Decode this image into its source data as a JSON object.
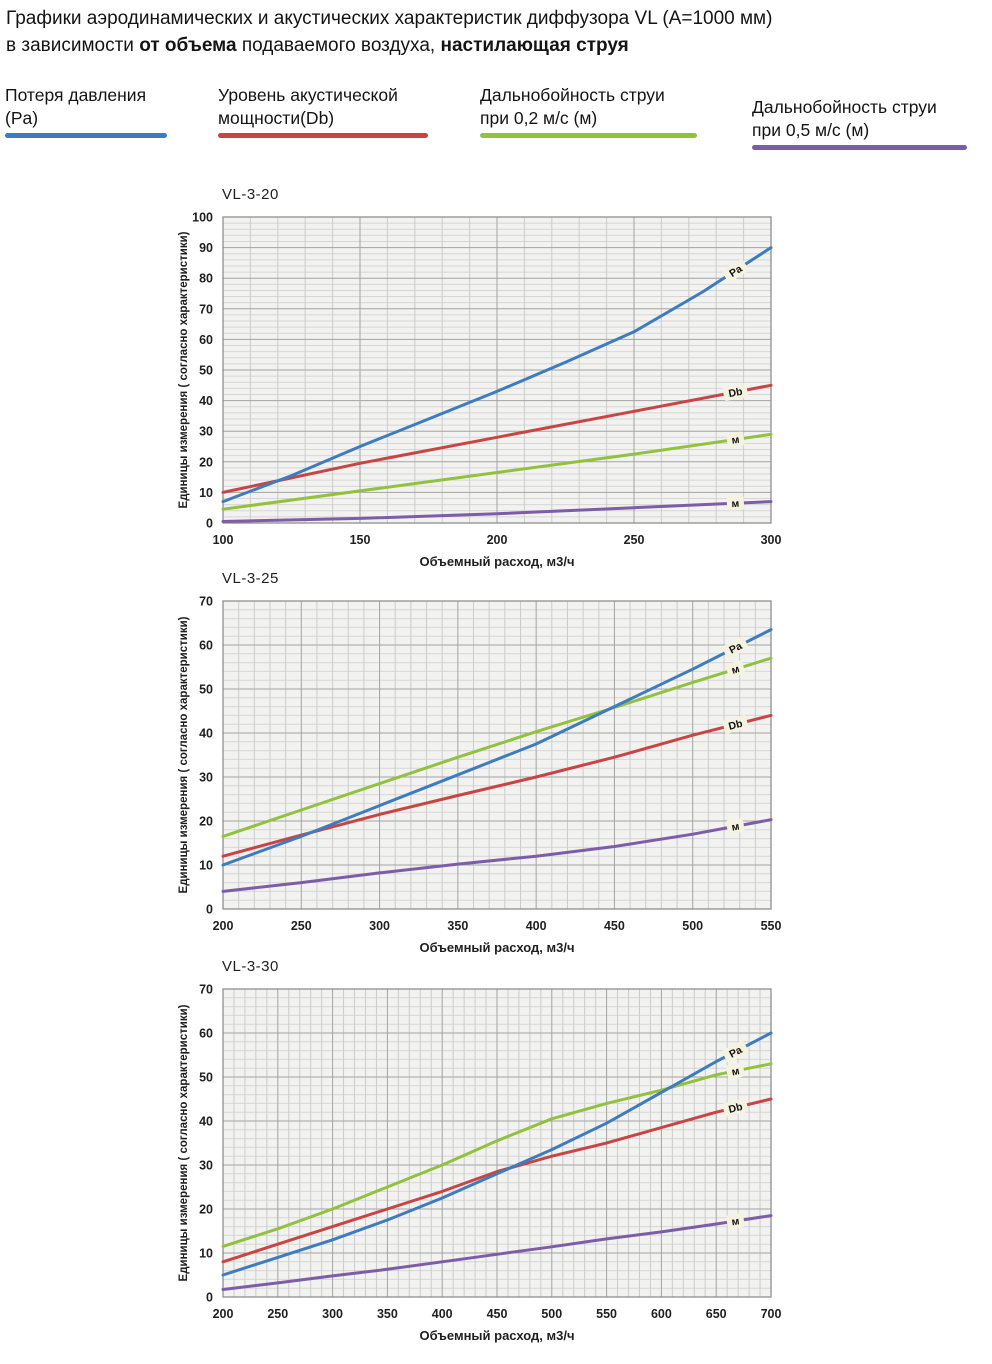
{
  "header": {
    "line1": "Графики аэродинамических и акустических характеристик  диффузора VL (А=1000 мм)",
    "line2": {
      "prefix": "в зависимости ",
      "bold1": "от объема",
      "mid": " подаваемого воздуха, ",
      "bold2": "настилающая струя"
    }
  },
  "legend": [
    {
      "line1": "Потеря давления",
      "line2": "(Pa)",
      "color": "#3e7cbe"
    },
    {
      "line1": "Уровень акустической",
      "line2": "мощности(Db)",
      "color": "#c74545"
    },
    {
      "line1": "Дальнобойность струи",
      "line2": "при 0,2 м/с (м)",
      "color": "#92c13e"
    },
    {
      "line1": "Дальнобойность струи",
      "line2": "при 0,5 м/с (м)",
      "color": "#7d5ca8"
    }
  ],
  "chart_data": [
    {
      "type": "line",
      "title": "VL-3-20",
      "xlabel": "Объемный расход, м3/ч",
      "ylabel": "Единицы измерения ( согласно характеристики)",
      "xlim": [
        100,
        300
      ],
      "ylim": [
        0,
        100
      ],
      "x_ticks": [
        100,
        150,
        200,
        250,
        300
      ],
      "y_ticks": [
        0,
        10,
        20,
        30,
        40,
        50,
        60,
        70,
        80,
        90,
        100
      ],
      "x_minor_step": 10,
      "y_minor_step": 2,
      "grid": true,
      "series": [
        {
          "name": "Дальнобойность струи при 0,2 м/с (м)",
          "label": "м",
          "color": "#92c13e",
          "x": [
            100,
            150,
            200,
            250,
            300
          ],
          "values": [
            4.5,
            10.5,
            16.5,
            22.5,
            29
          ]
        },
        {
          "name": "Дальнобойность струи при 0,5 м/с (м)",
          "label": "м",
          "color": "#7d5ca8",
          "x": [
            100,
            150,
            200,
            250,
            300
          ],
          "values": [
            0.5,
            1.5,
            3,
            5,
            7
          ]
        },
        {
          "name": "Уровень акустической мощности(Db)",
          "label": "Db",
          "color": "#c74545",
          "x": [
            100,
            150,
            200,
            250,
            300
          ],
          "values": [
            10,
            19.5,
            28,
            36.5,
            45
          ]
        },
        {
          "name": "Потеря давления (Pa)",
          "label": "Pa",
          "color": "#3e7cbe",
          "x": [
            100,
            125,
            150,
            175,
            200,
            225,
            250,
            275,
            300
          ],
          "values": [
            7,
            15.5,
            25,
            34,
            43,
            52.5,
            62.5,
            75.5,
            90
          ]
        }
      ]
    },
    {
      "type": "line",
      "title": "VL-3-25",
      "xlabel": "Объемный расход, м3/ч",
      "ylabel": "Единицы измерения ( согласно характеристики)",
      "xlim": [
        200,
        550
      ],
      "ylim": [
        0,
        70
      ],
      "x_ticks": [
        200,
        250,
        300,
        350,
        400,
        450,
        500,
        550
      ],
      "y_ticks": [
        0,
        10,
        20,
        30,
        40,
        50,
        60,
        70
      ],
      "x_minor_step": 10,
      "y_minor_step": 2,
      "grid": true,
      "series": [
        {
          "name": "Дальнобойность струи при 0,2 м/с (м)",
          "label": "м",
          "color": "#92c13e",
          "x": [
            200,
            250,
            300,
            350,
            400,
            450,
            500,
            550
          ],
          "values": [
            16.5,
            22.5,
            28.5,
            34.5,
            40.3,
            45.8,
            51.5,
            57
          ]
        },
        {
          "name": "Дальнобойность струи при 0,5 м/с (м)",
          "label": "м",
          "color": "#7d5ca8",
          "x": [
            200,
            250,
            300,
            350,
            400,
            450,
            500,
            550
          ],
          "values": [
            4,
            6,
            8.2,
            10.2,
            12,
            14.2,
            17,
            20.3
          ]
        },
        {
          "name": "Уровень акустической мощности(Db)",
          "label": "Db",
          "color": "#c74545",
          "x": [
            200,
            250,
            300,
            350,
            400,
            450,
            500,
            550
          ],
          "values": [
            12,
            16.8,
            21.5,
            25.8,
            30,
            34.5,
            39.5,
            44
          ]
        },
        {
          "name": "Потеря давления (Pa)",
          "label": "Pa",
          "color": "#3e7cbe",
          "x": [
            200,
            250,
            300,
            350,
            400,
            450,
            500,
            550
          ],
          "values": [
            10,
            16.5,
            23.5,
            30.5,
            37.5,
            46,
            54.5,
            63.5
          ]
        }
      ]
    },
    {
      "type": "line",
      "title": "VL-3-30",
      "xlabel": "Объемный расход, м3/ч",
      "ylabel": "Единицы измерения ( согласно характеристики)",
      "xlim": [
        200,
        700
      ],
      "ylim": [
        0,
        70
      ],
      "x_ticks": [
        200,
        250,
        300,
        350,
        400,
        450,
        500,
        550,
        600,
        650,
        700
      ],
      "y_ticks": [
        0,
        10,
        20,
        30,
        40,
        50,
        60,
        70
      ],
      "x_minor_step": 10,
      "y_minor_step": 2,
      "grid": true,
      "series": [
        {
          "name": "Дальнобойность струи при 0,2 м/с (м)",
          "label": "м",
          "color": "#92c13e",
          "x": [
            200,
            250,
            300,
            350,
            400,
            450,
            500,
            550,
            600,
            650,
            700
          ],
          "values": [
            11.5,
            15.5,
            20,
            25,
            30,
            35.5,
            40.5,
            44,
            47,
            50.5,
            53
          ]
        },
        {
          "name": "Дальнобойность струи при 0,5 м/с (м)",
          "label": "м",
          "color": "#7d5ca8",
          "x": [
            200,
            250,
            300,
            350,
            400,
            450,
            500,
            550,
            600,
            650,
            700
          ],
          "values": [
            1.7,
            3.2,
            4.8,
            6.3,
            8,
            9.7,
            11.4,
            13.2,
            14.8,
            16.6,
            18.5
          ]
        },
        {
          "name": "Уровень акустической мощности(Db)",
          "label": "Db",
          "color": "#c74545",
          "x": [
            200,
            250,
            300,
            350,
            400,
            450,
            500,
            550,
            600,
            650,
            700
          ],
          "values": [
            8,
            12,
            16,
            20,
            24,
            28.5,
            32,
            35,
            38.5,
            42,
            45
          ]
        },
        {
          "name": "Потеря давления (Pa)",
          "label": "Pa",
          "color": "#3e7cbe",
          "x": [
            200,
            250,
            300,
            350,
            400,
            450,
            500,
            550,
            600,
            650,
            700
          ],
          "values": [
            5,
            9,
            13,
            17.5,
            22.5,
            28,
            33.5,
            39.5,
            46.5,
            53.5,
            60
          ]
        }
      ]
    }
  ],
  "style": {
    "plot_bg": "#f2f2f1",
    "minor_grid": "#d6d6d6",
    "minor_vgrid": "#cccccc",
    "major_grid": "#a3a3a3",
    "border": "#8f8f8f",
    "label_box": "#f5f2e0",
    "text": "#1f1f1f"
  }
}
